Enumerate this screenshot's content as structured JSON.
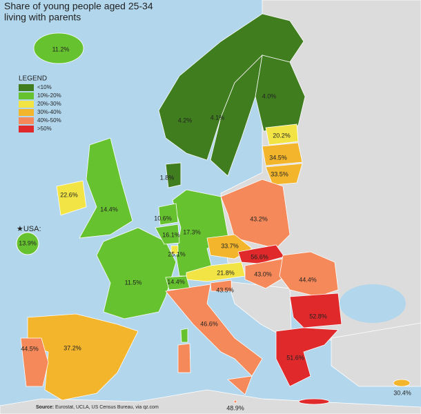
{
  "header": {
    "title": [
      "Share of young people aged 25-34",
      "living with parents"
    ]
  },
  "legend": {
    "title": "LEGEND",
    "items": [
      {
        "label": "<10%",
        "color": "#3f7d1f"
      },
      {
        "label": "10%-20%",
        "color": "#66c22e"
      },
      {
        "label": "20%-30%",
        "color": "#f3e445"
      },
      {
        "label": "30%-40%",
        "color": "#f2b52c"
      },
      {
        "label": "40%-50%",
        "color": "#f5895a"
      },
      {
        "label": ">50%",
        "color": "#e0292b"
      }
    ]
  },
  "usa": {
    "label": "★USA:",
    "value": "13.9%"
  },
  "map_labels": [
    "11.2%",
    "4.2%",
    "4.1%",
    "4.0%",
    "20.2%",
    "34.5%",
    "33.5%",
    "1.8%",
    "22.6%",
    "14.4%",
    "10.6%",
    "16.1%",
    "17.3%",
    "43.2%",
    "33.7%",
    "56.6%",
    "25.1%",
    "21.8%",
    "43.0%",
    "44.4%",
    "11.5%",
    "14.4%",
    "43.5%",
    "52.8%",
    "46.6%",
    "44.5%",
    "37.2%",
    "51.6%",
    "30.4%",
    "48.9%"
  ],
  "source": {
    "label": "Source:",
    "text": "Eurostat, UCLA, US Census Bureau, via qz.com"
  }
}
